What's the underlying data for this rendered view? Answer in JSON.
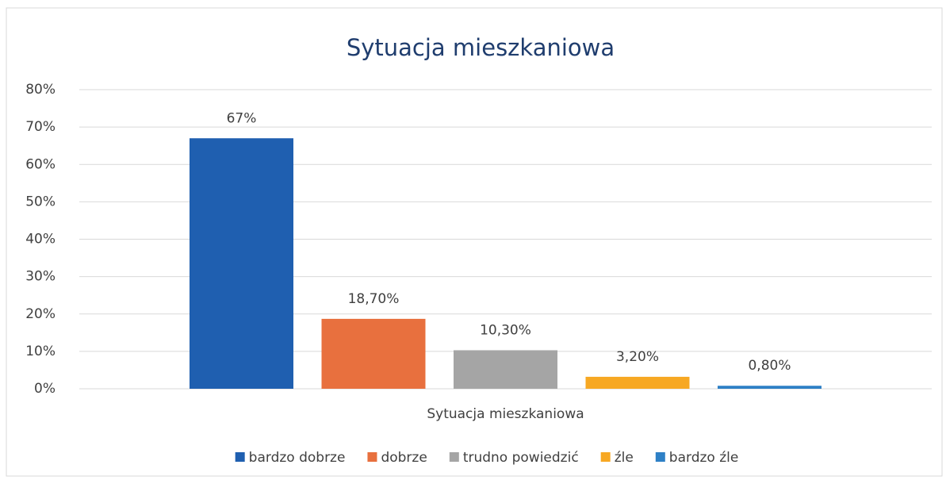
{
  "chart_data": {
    "type": "bar",
    "title": "Sytuacja mieszkaniowa",
    "categories": [
      "Sytuacja mieszkaniowa"
    ],
    "series": [
      {
        "name": "bardzo dobrze",
        "color": "#1f5fb0",
        "values": [
          67
        ],
        "value_labels": [
          "67%"
        ]
      },
      {
        "name": "dobrze",
        "color": "#e8703e",
        "values": [
          18.7
        ],
        "value_labels": [
          "18,70%"
        ]
      },
      {
        "name": "trudno powiedzić",
        "color": "#a5a5a5",
        "values": [
          10.3
        ],
        "value_labels": [
          "10,30%"
        ]
      },
      {
        "name": "źle",
        "color": "#f7a823",
        "values": [
          3.2
        ],
        "value_labels": [
          "3,20%"
        ]
      },
      {
        "name": "bardzo źle",
        "color": "#2e80c6",
        "values": [
          0.8
        ],
        "value_labels": [
          "0,80%"
        ]
      }
    ],
    "ylim": [
      0,
      80
    ],
    "yticks": [
      {
        "value": 0,
        "label": "0%"
      },
      {
        "value": 10,
        "label": "10%"
      },
      {
        "value": 20,
        "label": "20%"
      },
      {
        "value": 30,
        "label": "30%"
      },
      {
        "value": 40,
        "label": "40%"
      },
      {
        "value": 50,
        "label": "50%"
      },
      {
        "value": 60,
        "label": "60%"
      },
      {
        "value": 70,
        "label": "70%"
      },
      {
        "value": 80,
        "label": "80%"
      }
    ],
    "grid": true,
    "legend": "bottom"
  }
}
